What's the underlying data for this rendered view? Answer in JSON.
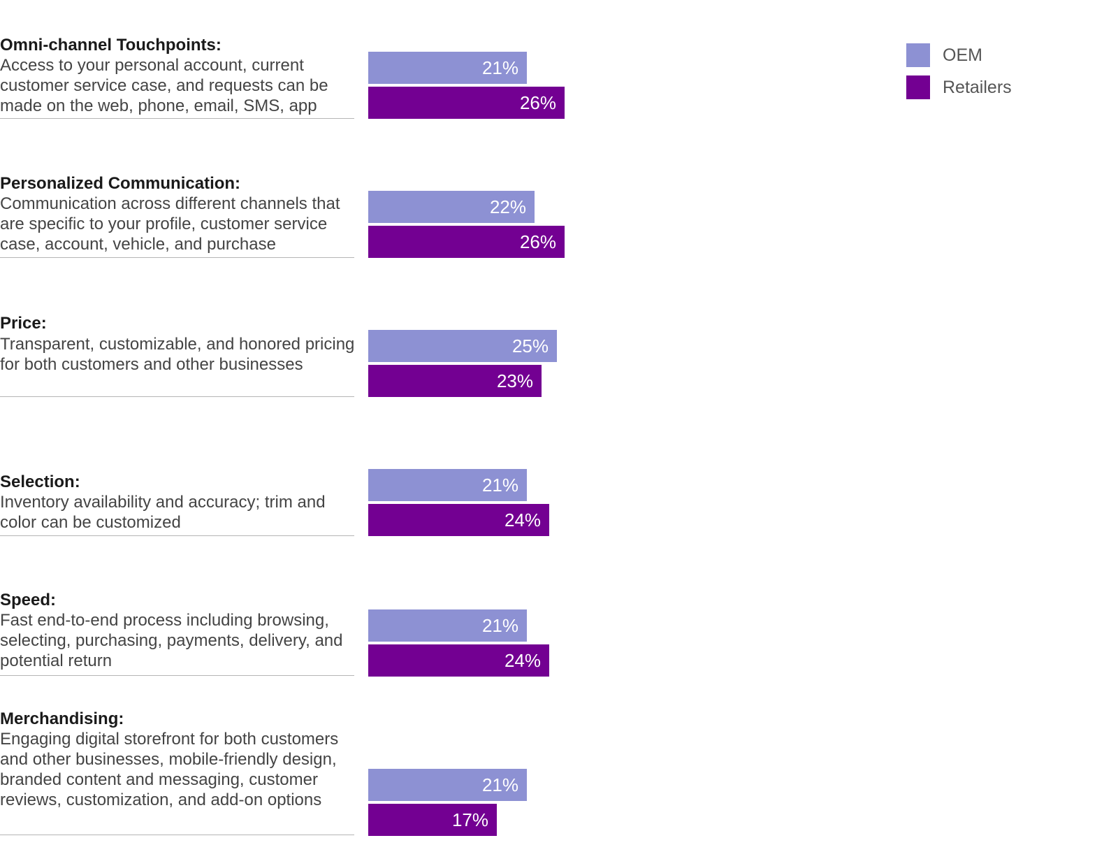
{
  "colors": {
    "oem": "#8d91d3",
    "retailers": "#730092"
  },
  "legend": [
    {
      "name": "OEM",
      "color": "#8d91d3"
    },
    {
      "name": "Retailers",
      "color": "#730092"
    }
  ],
  "chart_data": {
    "type": "bar",
    "orientation": "horizontal",
    "title": "",
    "xlabel": "",
    "ylabel": "",
    "xlim": [
      0,
      100
    ],
    "grid": false,
    "legend_position": "top-right",
    "categories": [
      {
        "heading": "Omni-channel Touchpoints:",
        "description": "Access to your personal account, current customer service case, and requests can be made on the web, phone, email, SMS, app"
      },
      {
        "heading": "Personalized Communication:",
        "description": "Communication across different channels that are specific to your profile, customer service case, account, vehicle, and purchase"
      },
      {
        "heading": "Price:",
        "description": "Transparent, customizable, and honored pricing for both customers and other businesses"
      },
      {
        "heading": "Selection:",
        "description": "Inventory availability and accuracy; trim and color can be customized"
      },
      {
        "heading": "Speed:",
        "description": "Fast end-to-end process including browsing, selecting, purchasing, payments, delivery, and potential return"
      },
      {
        "heading": "Merchandising:",
        "description": "Engaging digital storefront for both customers and other businesses, mobile-friendly design, branded content and messaging, customer reviews, customization, and add-on options"
      }
    ],
    "series": [
      {
        "name": "OEM",
        "color": "#8d91d3",
        "values": [
          21,
          22,
          25,
          21,
          21,
          21
        ],
        "labels": [
          "21%",
          "22%",
          "25%",
          "21%",
          "21%",
          "21%"
        ]
      },
      {
        "name": "Retailers",
        "color": "#730092",
        "values": [
          26,
          26,
          23,
          24,
          24,
          17
        ],
        "labels": [
          "26%",
          "26%",
          "23%",
          "24%",
          "24%",
          "17%"
        ]
      }
    ]
  }
}
